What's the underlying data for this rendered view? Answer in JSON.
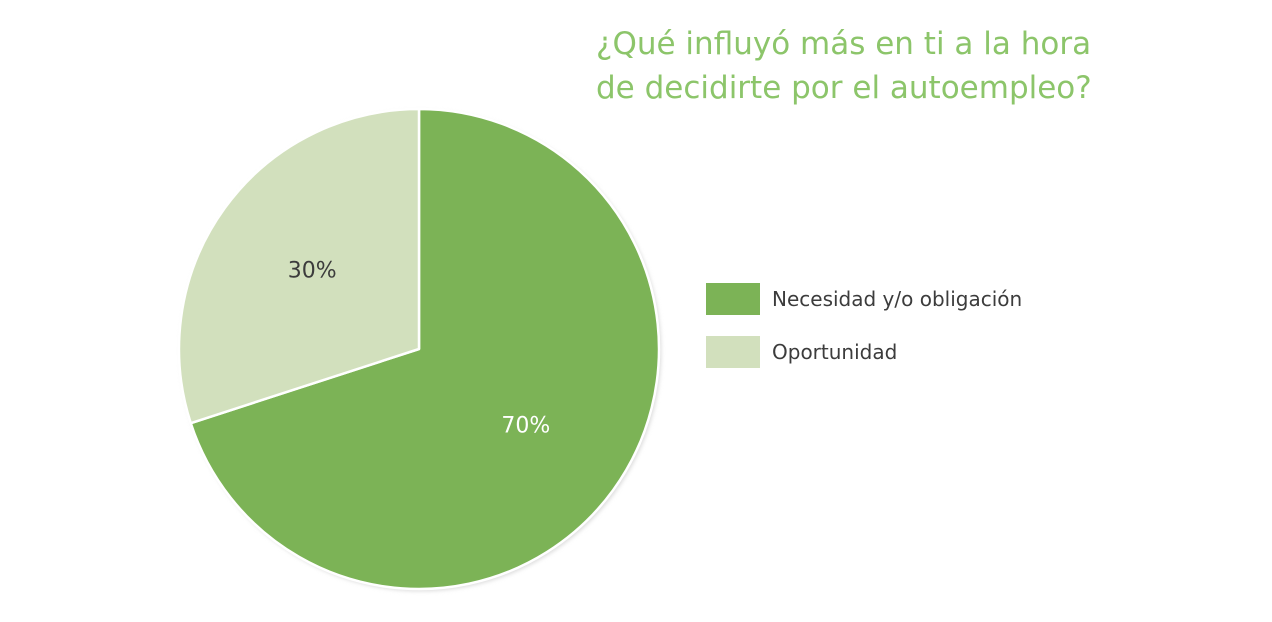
{
  "chart_data": {
    "type": "pie",
    "title_lines": [
      "¿Qué influyó más en ti a la hora",
      "de decidirte por el autoempleo?"
    ],
    "slices": [
      {
        "name": "Necesidad y/o obligación",
        "value": 70,
        "label": "70%",
        "color": "#7cb356",
        "label_color": "#ffffff"
      },
      {
        "name": "Oportunidad",
        "value": 30,
        "label": "30%",
        "color": "#d2e0bd",
        "label_color": "#3c3c3c"
      }
    ],
    "legend_position": "right"
  }
}
